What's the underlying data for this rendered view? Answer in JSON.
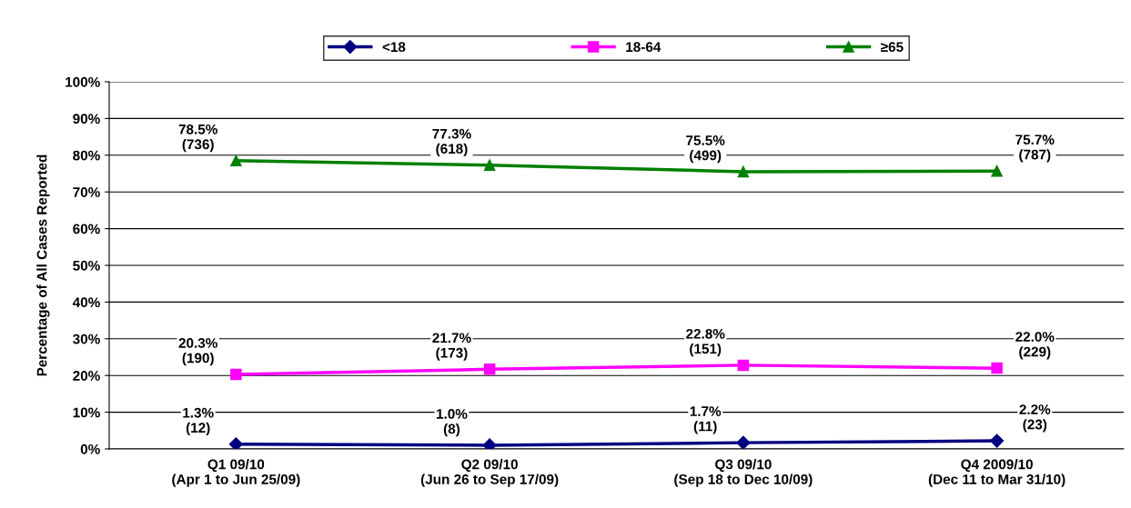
{
  "chart_data": {
    "type": "line",
    "ylabel": "Percentage of All Cases Reported",
    "categories": [
      "Q1 09/10\n(Apr 1 to Jun 25/09)",
      "Q2 09/10\n(Jun 26 to Sep 17/09)",
      "Q3 09/10\n(Sep 18 to Dec 10/09)",
      "Q4 2009/10\n(Dec 11 to Mar 31/10)"
    ],
    "series": [
      {
        "name": "<18",
        "color": "#000080",
        "marker": "diamond",
        "values": [
          1.3,
          1.0,
          1.7,
          2.2
        ],
        "value_labels": [
          "1.3%\n(12)",
          "1.0%\n(8)",
          "1.7%\n(11)",
          "2.2%\n(23)"
        ]
      },
      {
        "name": "18-64",
        "color": "#ff00ff",
        "marker": "square",
        "values": [
          20.3,
          21.7,
          22.8,
          22.0
        ],
        "value_labels": [
          "20.3%\n(190)",
          "21.7%\n(173)",
          "22.8%\n(151)",
          "22.0%\n(229)"
        ]
      },
      {
        "name": "≥65",
        "color": "#008000",
        "marker": "triangle",
        "values": [
          78.5,
          77.3,
          75.5,
          75.7
        ],
        "value_labels": [
          "78.5%\n(736)",
          "77.3%\n(618)",
          "75.5%\n(499)",
          "75.7%\n(787)"
        ]
      }
    ],
    "ylim": [
      0,
      100
    ],
    "yticks": [
      {
        "value": 0,
        "label": "0%"
      },
      {
        "value": 10,
        "label": "10%"
      },
      {
        "value": 20,
        "label": "20%"
      },
      {
        "value": 30,
        "label": "30%"
      },
      {
        "value": 40,
        "label": "40%"
      },
      {
        "value": 50,
        "label": "50%"
      },
      {
        "value": 60,
        "label": "60%"
      },
      {
        "value": 70,
        "label": "70%"
      },
      {
        "value": 80,
        "label": "80%"
      },
      {
        "value": 90,
        "label": "90%"
      },
      {
        "value": 100,
        "label": "100%"
      }
    ],
    "grid": "y",
    "legend": "top",
    "line_style": "solid"
  }
}
